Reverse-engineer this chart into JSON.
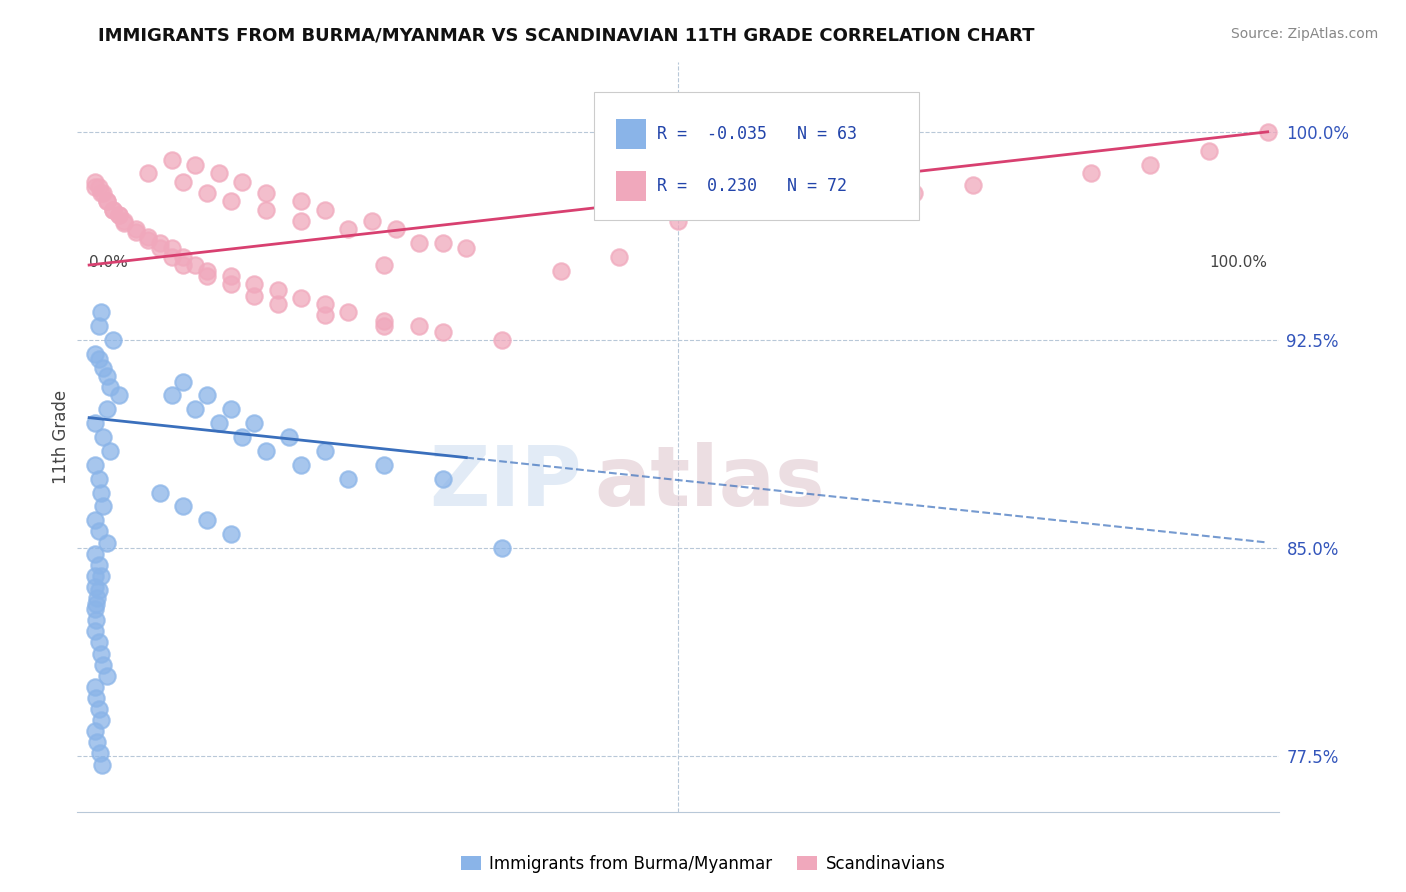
{
  "title": "IMMIGRANTS FROM BURMA/MYANMAR VS SCANDINAVIAN 11TH GRADE CORRELATION CHART",
  "source": "Source: ZipAtlas.com",
  "ylabel": "11th Grade",
  "ymin": 0.755,
  "ymax": 1.025,
  "xmin": -0.01,
  "xmax": 1.01,
  "blue_R": -0.035,
  "blue_N": 63,
  "pink_R": 0.23,
  "pink_N": 72,
  "blue_color": "#8ab4e8",
  "pink_color": "#f0a8bc",
  "blue_line_color": "#3a6fbc",
  "pink_line_color": "#d84070",
  "legend_blue_label": "Immigrants from Burma/Myanmar",
  "legend_pink_label": "Scandinavians",
  "ytick_positions": [
    0.775,
    0.85,
    0.925,
    1.0
  ],
  "ytick_labels": [
    "77.5%",
    "85.0%",
    "92.5%",
    "100.0%"
  ],
  "blue_line_solid_end": 0.32,
  "pink_line_start_y": 0.952,
  "pink_line_end_y": 1.0,
  "blue_line_start_y": 0.897,
  "blue_line_end_y": 0.852,
  "blue_scatter_x": [
    0.005,
    0.008,
    0.012,
    0.015,
    0.018,
    0.02,
    0.025,
    0.008,
    0.01,
    0.015,
    0.005,
    0.012,
    0.018,
    0.005,
    0.008,
    0.01,
    0.012,
    0.005,
    0.008,
    0.015,
    0.005,
    0.008,
    0.01,
    0.005,
    0.007,
    0.005,
    0.006,
    0.005,
    0.008,
    0.01,
    0.012,
    0.015,
    0.005,
    0.006,
    0.008,
    0.01,
    0.005,
    0.007,
    0.009,
    0.011,
    0.005,
    0.008,
    0.006,
    0.07,
    0.09,
    0.11,
    0.13,
    0.15,
    0.18,
    0.22,
    0.08,
    0.1,
    0.12,
    0.14,
    0.17,
    0.2,
    0.25,
    0.3,
    0.06,
    0.08,
    0.1,
    0.12,
    0.35
  ],
  "blue_scatter_y": [
    0.92,
    0.918,
    0.915,
    0.912,
    0.908,
    0.925,
    0.905,
    0.93,
    0.935,
    0.9,
    0.895,
    0.89,
    0.885,
    0.88,
    0.875,
    0.87,
    0.865,
    0.86,
    0.856,
    0.852,
    0.848,
    0.844,
    0.84,
    0.836,
    0.832,
    0.828,
    0.824,
    0.82,
    0.816,
    0.812,
    0.808,
    0.804,
    0.8,
    0.796,
    0.792,
    0.788,
    0.784,
    0.78,
    0.776,
    0.772,
    0.84,
    0.835,
    0.83,
    0.905,
    0.9,
    0.895,
    0.89,
    0.885,
    0.88,
    0.875,
    0.91,
    0.905,
    0.9,
    0.895,
    0.89,
    0.885,
    0.88,
    0.875,
    0.87,
    0.865,
    0.86,
    0.855,
    0.85
  ],
  "pink_scatter_x": [
    0.005,
    0.01,
    0.015,
    0.02,
    0.025,
    0.03,
    0.04,
    0.05,
    0.06,
    0.07,
    0.08,
    0.09,
    0.1,
    0.12,
    0.14,
    0.16,
    0.18,
    0.2,
    0.22,
    0.25,
    0.28,
    0.3,
    0.05,
    0.08,
    0.1,
    0.12,
    0.15,
    0.18,
    0.22,
    0.28,
    0.32,
    0.25,
    0.07,
    0.09,
    0.11,
    0.13,
    0.15,
    0.18,
    0.2,
    0.24,
    0.26,
    0.3,
    0.005,
    0.008,
    0.012,
    0.015,
    0.02,
    0.025,
    0.03,
    0.04,
    0.05,
    0.06,
    0.07,
    0.08,
    0.1,
    0.12,
    0.14,
    0.16,
    0.2,
    0.25,
    0.35,
    0.5,
    0.55,
    0.65,
    0.7,
    0.75,
    0.85,
    0.9,
    0.95,
    1.0,
    0.4,
    0.45
  ],
  "pink_scatter_y": [
    0.98,
    0.978,
    0.975,
    0.972,
    0.97,
    0.968,
    0.965,
    0.962,
    0.96,
    0.958,
    0.955,
    0.952,
    0.95,
    0.948,
    0.945,
    0.943,
    0.94,
    0.938,
    0.935,
    0.932,
    0.93,
    0.928,
    0.985,
    0.982,
    0.978,
    0.975,
    0.972,
    0.968,
    0.965,
    0.96,
    0.958,
    0.952,
    0.99,
    0.988,
    0.985,
    0.982,
    0.978,
    0.975,
    0.972,
    0.968,
    0.965,
    0.96,
    0.982,
    0.98,
    0.978,
    0.975,
    0.972,
    0.97,
    0.967,
    0.964,
    0.961,
    0.958,
    0.955,
    0.952,
    0.948,
    0.945,
    0.941,
    0.938,
    0.934,
    0.93,
    0.925,
    0.968,
    0.972,
    0.975,
    0.978,
    0.981,
    0.985,
    0.988,
    0.993,
    1.0,
    0.95,
    0.955
  ]
}
